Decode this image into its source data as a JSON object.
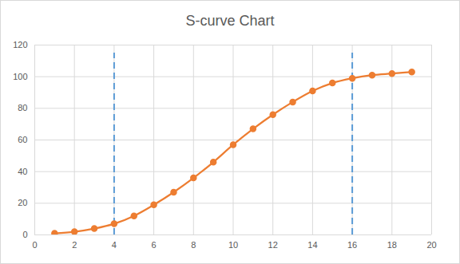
{
  "chart_data": {
    "type": "line",
    "title": "S-curve Chart",
    "x": [
      1,
      2,
      3,
      4,
      5,
      6,
      7,
      8,
      9,
      10,
      11,
      12,
      13,
      14,
      15,
      16,
      17,
      18,
      19
    ],
    "values": [
      1,
      2,
      4,
      7,
      12,
      19,
      27,
      36,
      46,
      57,
      67,
      76,
      84,
      91,
      96,
      99,
      101,
      102,
      103
    ],
    "color": "#ed7d31",
    "marker": "circle",
    "line_style": "solid",
    "xlim": [
      0,
      20
    ],
    "xticks": [
      0,
      2,
      4,
      6,
      8,
      10,
      12,
      14,
      16,
      18,
      20
    ],
    "ylim": [
      0,
      120
    ],
    "yticks": [
      0,
      20,
      40,
      60,
      80,
      100,
      120
    ],
    "grid": true,
    "reference_lines": {
      "x": [
        4,
        16
      ],
      "y": [
        0,
        115
      ],
      "color": "#5b9bd5",
      "line_style": "dashed"
    }
  }
}
